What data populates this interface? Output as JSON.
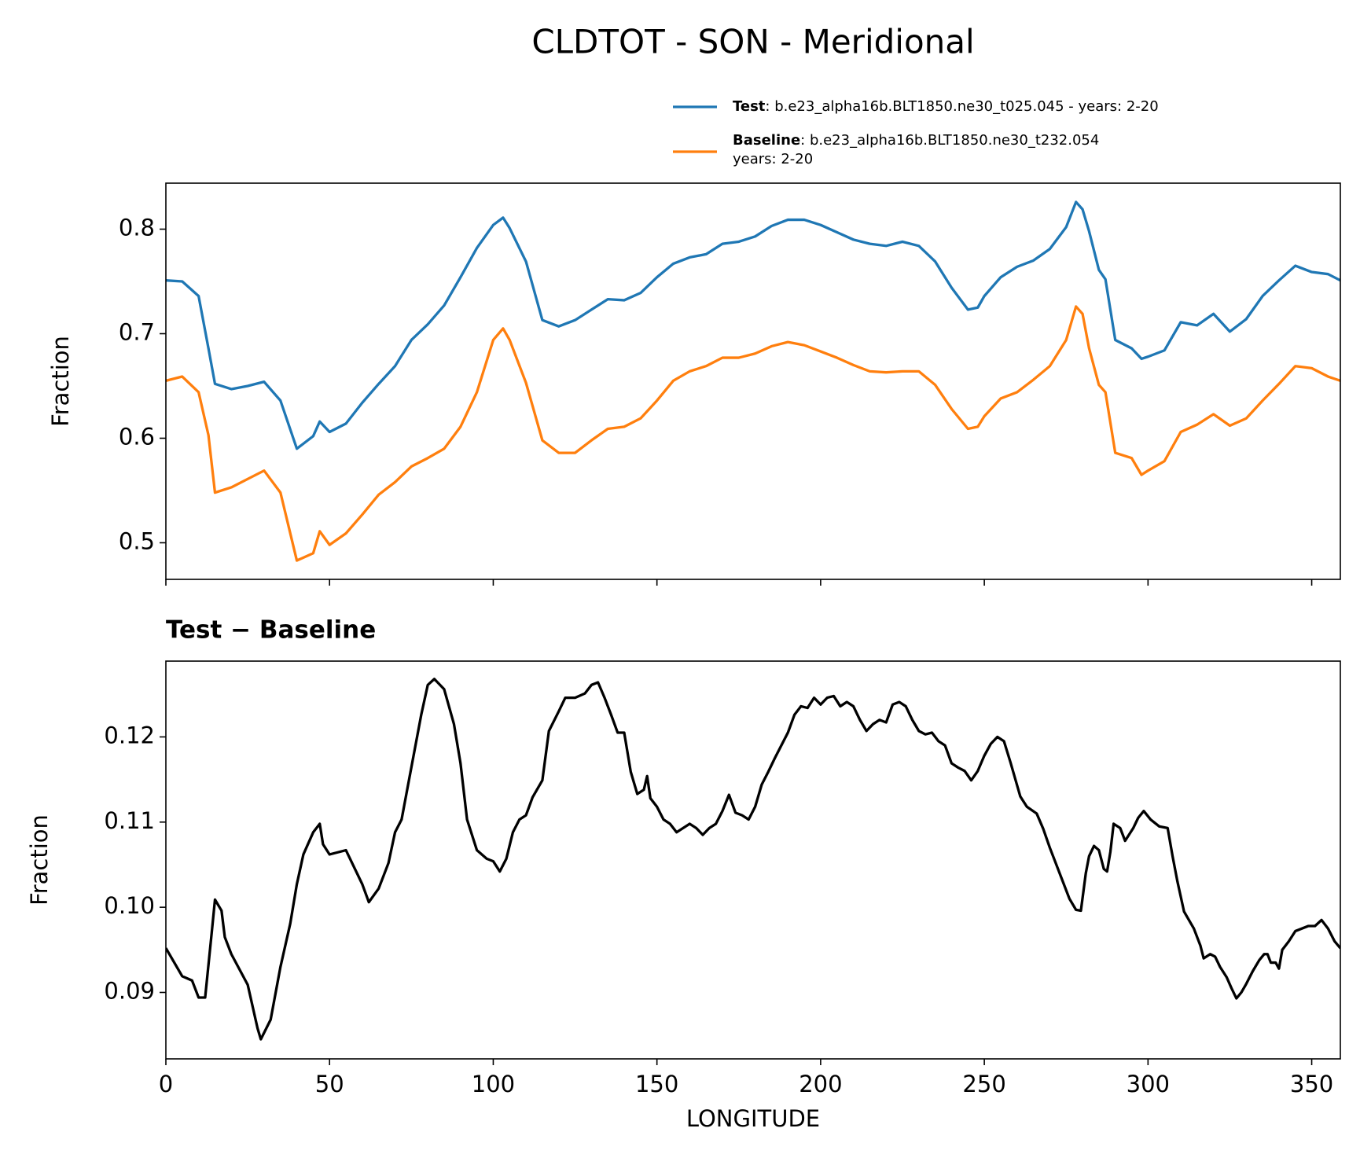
{
  "chart_data": [
    {
      "type": "line",
      "title": "CLDTOT - SON - Meridional",
      "ylabel": "Fraction",
      "x": [
        0,
        5,
        10,
        13,
        15,
        20,
        25,
        30,
        35,
        40,
        45,
        47,
        50,
        55,
        60,
        65,
        70,
        75,
        80,
        85,
        90,
        95,
        100,
        103,
        105,
        110,
        115,
        120,
        125,
        130,
        135,
        140,
        145,
        150,
        155,
        160,
        165,
        170,
        175,
        180,
        185,
        190,
        195,
        200,
        205,
        210,
        215,
        220,
        225,
        230,
        235,
        240,
        245,
        248,
        250,
        255,
        260,
        265,
        270,
        275,
        278,
        280,
        282,
        285,
        287,
        290,
        295,
        298,
        300,
        305,
        310,
        315,
        320,
        325,
        330,
        335,
        340,
        345,
        350,
        355,
        358.75
      ],
      "series": [
        {
          "name": "Test",
          "description": [
            ": b.e23_alpha16b.BLT1850.ne30_t025.045 - years: 2-20"
          ],
          "color": "#1f77b4",
          "values": [
            0.751,
            0.75,
            0.736,
            0.686,
            0.652,
            0.647,
            0.65,
            0.654,
            0.636,
            0.59,
            0.602,
            0.616,
            0.606,
            0.614,
            0.634,
            0.652,
            0.669,
            0.694,
            0.709,
            0.727,
            0.754,
            0.782,
            0.804,
            0.811,
            0.801,
            0.769,
            0.713,
            0.707,
            0.713,
            0.723,
            0.733,
            0.732,
            0.739,
            0.754,
            0.767,
            0.773,
            0.776,
            0.786,
            0.788,
            0.793,
            0.803,
            0.809,
            0.809,
            0.804,
            0.797,
            0.79,
            0.786,
            0.784,
            0.788,
            0.784,
            0.769,
            0.744,
            0.723,
            0.725,
            0.736,
            0.754,
            0.764,
            0.77,
            0.781,
            0.802,
            0.826,
            0.819,
            0.798,
            0.761,
            0.752,
            0.694,
            0.686,
            0.676,
            0.678,
            0.684,
            0.711,
            0.708,
            0.719,
            0.702,
            0.714,
            0.736,
            0.751,
            0.765,
            0.759,
            0.757,
            0.751
          ]
        },
        {
          "name": "Baseline",
          "description": [
            ": b.e23_alpha16b.BLT1850.ne30_t232.054",
            "years: 2-20"
          ],
          "color": "#ff7f0e",
          "values": [
            0.655,
            0.659,
            0.644,
            0.603,
            0.548,
            0.553,
            0.561,
            0.569,
            0.548,
            0.483,
            0.49,
            0.511,
            0.498,
            0.509,
            0.527,
            0.546,
            0.558,
            0.573,
            0.581,
            0.59,
            0.611,
            0.644,
            0.694,
            0.705,
            0.694,
            0.653,
            0.598,
            0.586,
            0.586,
            0.598,
            0.609,
            0.611,
            0.619,
            0.636,
            0.655,
            0.664,
            0.669,
            0.677,
            0.677,
            0.681,
            0.688,
            0.692,
            0.689,
            0.683,
            0.677,
            0.67,
            0.664,
            0.663,
            0.664,
            0.664,
            0.651,
            0.628,
            0.609,
            0.611,
            0.621,
            0.638,
            0.644,
            0.656,
            0.669,
            0.694,
            0.726,
            0.719,
            0.686,
            0.651,
            0.644,
            0.586,
            0.581,
            0.565,
            0.569,
            0.578,
            0.606,
            0.613,
            0.623,
            0.612,
            0.619,
            0.636,
            0.652,
            0.669,
            0.667,
            0.659,
            0.655
          ]
        }
      ],
      "xlim": [
        0,
        358.75
      ],
      "xticks": [
        0,
        50,
        100,
        150,
        200,
        250,
        300,
        350
      ],
      "ylim": [
        0.465,
        0.844
      ],
      "yticks": [
        0.5,
        0.6,
        0.7,
        0.8
      ]
    },
    {
      "type": "line",
      "title": "Test − Baseline",
      "ylabel": "Fraction",
      "xlabel": "LONGITUDE",
      "x": [
        0,
        5,
        8,
        10,
        12,
        14,
        15,
        17,
        18,
        20,
        25,
        28,
        29,
        32,
        35,
        38,
        40,
        42,
        45,
        47,
        48,
        50,
        55,
        60,
        62,
        65,
        68,
        70,
        72,
        74,
        76,
        78,
        80,
        82,
        85,
        88,
        90,
        92,
        95,
        98,
        100,
        102,
        104,
        106,
        108,
        110,
        112,
        115,
        117,
        120,
        122,
        125,
        128,
        130,
        132,
        134,
        136,
        138,
        140,
        142,
        144,
        146,
        147,
        148,
        150,
        152,
        154,
        156,
        158,
        160,
        162,
        164,
        166,
        168,
        170,
        172,
        174,
        176,
        178,
        180,
        182,
        184,
        186,
        188,
        190,
        192,
        194,
        196,
        198,
        200,
        202,
        204,
        206,
        208,
        210,
        212,
        214,
        216,
        218,
        220,
        222,
        224,
        226,
        228,
        230,
        232,
        234,
        236,
        238,
        240,
        242,
        244,
        246,
        248,
        250,
        252,
        254,
        256,
        258,
        261,
        263,
        266,
        268,
        270,
        272,
        274,
        276,
        278,
        279.5,
        281,
        282,
        283.5,
        285,
        286.5,
        287.5,
        288.5,
        289.5,
        291.5,
        293,
        295.5,
        297,
        298.7,
        300.8,
        303.4,
        306,
        307.5,
        309,
        311,
        314,
        316,
        317,
        319,
        320.5,
        322,
        324,
        325.5,
        327,
        328.5,
        330,
        332,
        334,
        335.5,
        336.5,
        337.5,
        339,
        340,
        341,
        343,
        345,
        347,
        349,
        351,
        353,
        355,
        357,
        358.75
      ],
      "series": [
        {
          "name": "Test − Baseline",
          "color": "#000000",
          "values": [
            0.0952,
            0.0919,
            0.0914,
            0.0894,
            0.0894,
            0.097,
            0.1009,
            0.0996,
            0.0965,
            0.0945,
            0.0909,
            0.0858,
            0.0845,
            0.0868,
            0.093,
            0.0981,
            0.1027,
            0.1062,
            0.1088,
            0.1098,
            0.1074,
            0.1062,
            0.1067,
            0.1027,
            0.1006,
            0.1022,
            0.1052,
            0.1088,
            0.1103,
            0.1144,
            0.1185,
            0.1226,
            0.1261,
            0.1268,
            0.1256,
            0.1215,
            0.1169,
            0.1103,
            0.1067,
            0.1057,
            0.1054,
            0.1042,
            0.1057,
            0.1088,
            0.1103,
            0.1108,
            0.1129,
            0.1149,
            0.1207,
            0.123,
            0.1246,
            0.1246,
            0.1251,
            0.1261,
            0.1264,
            0.1246,
            0.1226,
            0.1205,
            0.1205,
            0.1159,
            0.1133,
            0.1138,
            0.1154,
            0.1128,
            0.1118,
            0.1103,
            0.1098,
            0.1088,
            0.1093,
            0.1098,
            0.1093,
            0.1085,
            0.1093,
            0.1098,
            0.1113,
            0.1132,
            0.1111,
            0.1108,
            0.1103,
            0.1118,
            0.1144,
            0.1159,
            0.1175,
            0.119,
            0.1205,
            0.1226,
            0.1236,
            0.1234,
            0.1246,
            0.1238,
            0.1246,
            0.1248,
            0.1236,
            0.1241,
            0.1236,
            0.122,
            0.1207,
            0.1215,
            0.122,
            0.1217,
            0.1238,
            0.1241,
            0.1236,
            0.122,
            0.1207,
            0.1203,
            0.1205,
            0.1195,
            0.119,
            0.1169,
            0.1164,
            0.116,
            0.1149,
            0.116,
            0.1178,
            0.1192,
            0.12,
            0.1195,
            0.117,
            0.113,
            0.1118,
            0.111,
            0.1092,
            0.107,
            0.105,
            0.103,
            0.101,
            0.0997,
            0.0996,
            0.104,
            0.106,
            0.1072,
            0.1067,
            0.1045,
            0.1042,
            0.1065,
            0.1098,
            0.1093,
            0.1078,
            0.1093,
            0.1105,
            0.1113,
            0.1103,
            0.1095,
            0.1093,
            0.106,
            0.103,
            0.0995,
            0.0975,
            0.0955,
            0.094,
            0.0945,
            0.0942,
            0.093,
            0.0918,
            0.0905,
            0.0893,
            0.09,
            0.091,
            0.0925,
            0.0938,
            0.0945,
            0.0945,
            0.0935,
            0.0935,
            0.0928,
            0.095,
            0.096,
            0.0972,
            0.0975,
            0.0978,
            0.0978,
            0.0985,
            0.0975,
            0.096,
            0.0952
          ]
        }
      ],
      "xlim": [
        0,
        358.75
      ],
      "xticks": [
        0,
        50,
        100,
        150,
        200,
        250,
        300,
        350
      ],
      "ylim": [
        0.0822,
        0.1289
      ],
      "yticks": [
        0.09,
        {
          "value": 0.1,
          "label": "0.10"
        },
        0.11,
        0.12
      ]
    }
  ]
}
